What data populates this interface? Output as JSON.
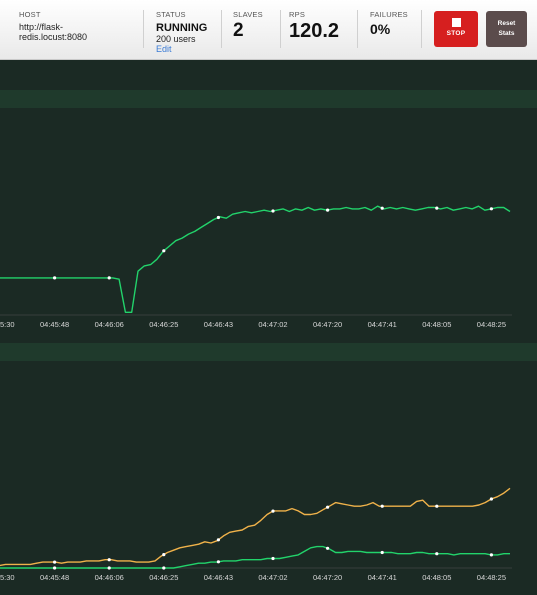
{
  "header": {
    "host": {
      "label": "HOST",
      "value_line1": "http://flask-",
      "value_line2": "redis.locust:8080"
    },
    "status": {
      "label": "STATUS",
      "state": "RUNNING",
      "users": "200 users",
      "edit": "Edit"
    },
    "slaves": {
      "label": "SLAVES",
      "value": "2"
    },
    "rps": {
      "label": "RPS",
      "value": "120.2"
    },
    "failures": {
      "label": "FAILURES",
      "value": "0%"
    },
    "stop_button": {
      "label": "STOP",
      "icon": "stop-square-icon"
    },
    "reset_button": {
      "label_line1": "Reset",
      "label_line2": "Stats"
    }
  },
  "colors": {
    "background": "#1b2a24",
    "band": "#1f3a2c",
    "green_series": "#22d36b",
    "orange_series": "#f0b24a",
    "stop_red": "#d61f1f",
    "reset_brown": "#5b4c4c"
  },
  "chart_data": [
    {
      "type": "line",
      "x_ticks": [
        "5:30",
        "04:45:48",
        "04:46:06",
        "04:46:25",
        "04:46:43",
        "04:47:02",
        "04:47:20",
        "04:47:41",
        "04:48:05",
        "04:48:25"
      ],
      "ylim": [
        0,
        150
      ],
      "series": [
        {
          "color": "#22d36b",
          "values": [
            28,
            28,
            28,
            28,
            28,
            28,
            28,
            28,
            28,
            28,
            28,
            28,
            28,
            28,
            28,
            28,
            28,
            28,
            28,
            28,
            27,
            2,
            2,
            33,
            37,
            38,
            42,
            48,
            52,
            56,
            58,
            61,
            63,
            66,
            69,
            72,
            74,
            73,
            76,
            77,
            78,
            77,
            78,
            79,
            78,
            79,
            80,
            78,
            80,
            79,
            81,
            79,
            80,
            79,
            80,
            80,
            81,
            80,
            80,
            81,
            79,
            82,
            80,
            81,
            80,
            81,
            80,
            79,
            80,
            81,
            81,
            80,
            81,
            79,
            80,
            81,
            80,
            82,
            79,
            80,
            81,
            81,
            78
          ]
        }
      ]
    },
    {
      "type": "line",
      "x_ticks": [
        "5:30",
        "04:45:48",
        "04:46:06",
        "04:46:25",
        "04:46:43",
        "04:47:02",
        "04:47:20",
        "04:47:41",
        "04:48:05",
        "04:48:25"
      ],
      "ylim": [
        0,
        90
      ],
      "series": [
        {
          "color": "#f0b24a",
          "values": [
            2,
            2,
            3,
            3,
            3,
            3,
            3,
            4,
            5,
            5,
            5,
            4,
            5,
            5,
            5,
            6,
            6,
            6,
            7,
            7,
            6,
            6,
            6,
            5,
            5,
            5,
            6,
            10,
            13,
            15,
            17,
            18,
            19,
            20,
            22,
            21,
            23,
            27,
            30,
            31,
            32,
            35,
            36,
            40,
            45,
            48,
            48,
            48,
            50,
            48,
            45,
            45,
            46,
            49,
            52,
            55,
            54,
            53,
            52,
            52,
            53,
            55,
            52,
            52,
            52,
            52,
            52,
            52,
            56,
            57,
            52,
            52,
            52,
            52,
            52,
            52,
            52,
            52,
            53,
            55,
            58,
            60,
            63,
            67
          ]
        },
        {
          "color": "#22d36b",
          "values": [
            0,
            0,
            0,
            0,
            0,
            0,
            0,
            0,
            0,
            0,
            0,
            0,
            0,
            0,
            0,
            0,
            0,
            0,
            0,
            0,
            0,
            0,
            0,
            0,
            0,
            0,
            0,
            0,
            0,
            0,
            1,
            2,
            3,
            4,
            4,
            5,
            5,
            6,
            6,
            6,
            7,
            7,
            7,
            7,
            8,
            8,
            8,
            9,
            10,
            11,
            14,
            17,
            18,
            18,
            16,
            13,
            13,
            14,
            14,
            14,
            13,
            13,
            13,
            13,
            13,
            12,
            12,
            12,
            13,
            13,
            12,
            12,
            12,
            12,
            11,
            12,
            12,
            12,
            12,
            12,
            11,
            11,
            12,
            12
          ]
        }
      ]
    }
  ]
}
